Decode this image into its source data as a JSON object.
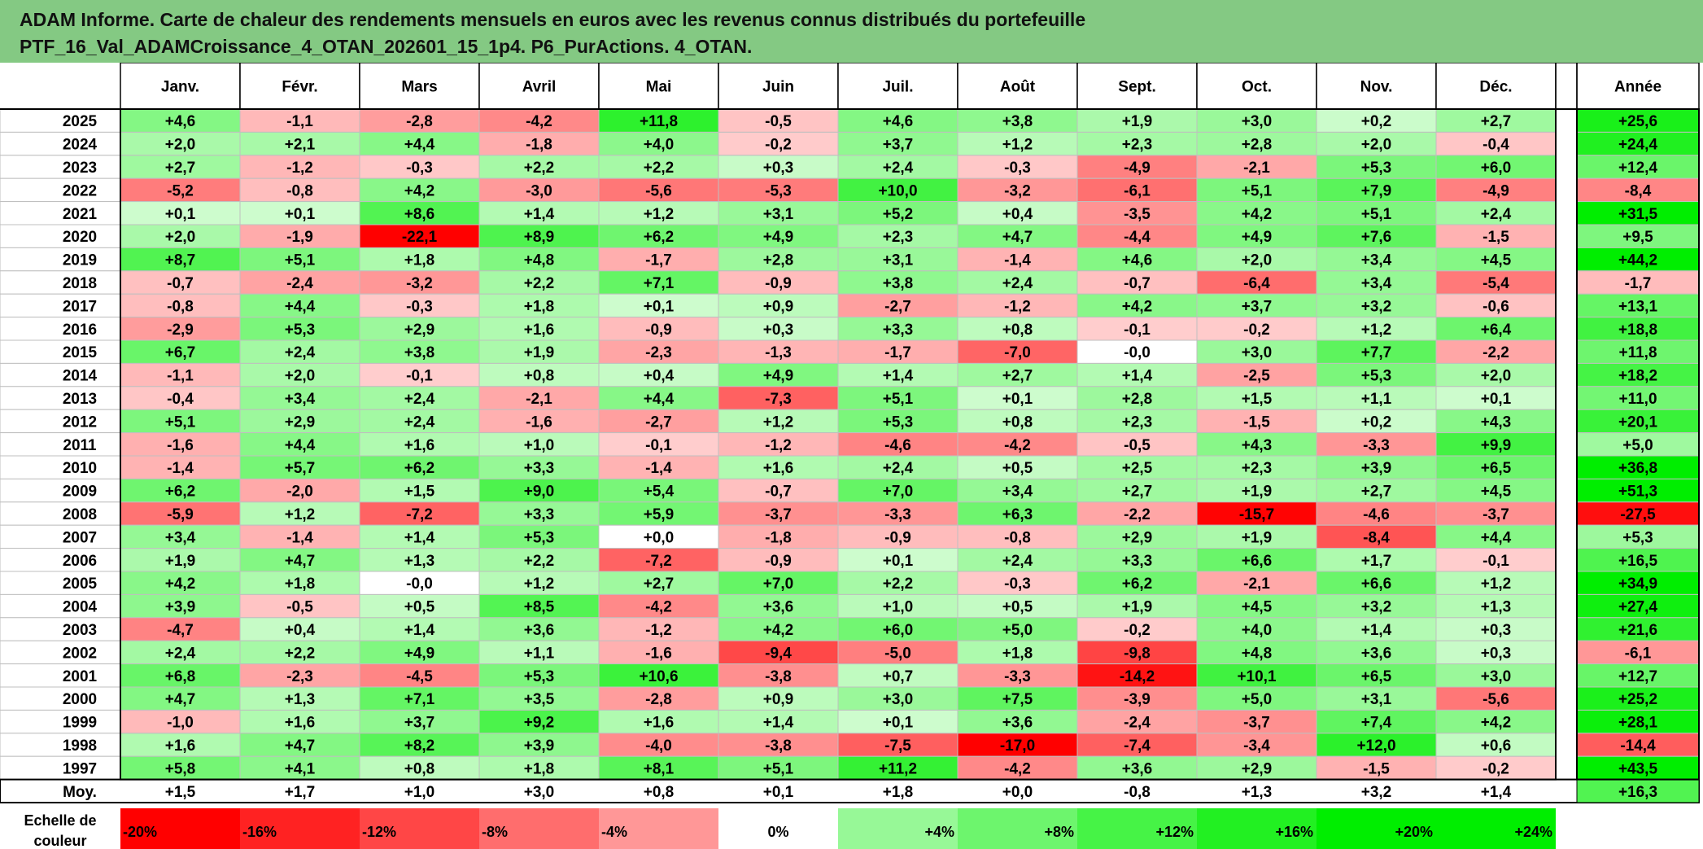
{
  "title_lines": [
    "ADAM Informe. Carte de chaleur des rendements mensuels en euros avec les revenus connus distribués du portefeuille",
    "PTF_16_Val_ADAMCroissance_4_OTAN_202601_15_1p4. P6_PurActions. 4_OTAN."
  ],
  "chart_data": {
    "type": "heatmap",
    "columns": [
      "Janv.",
      "Févr.",
      "Mars",
      "Avril",
      "Mai",
      "Juin",
      "Juil.",
      "Août",
      "Sept.",
      "Oct.",
      "Nov.",
      "Déc."
    ],
    "year_header": "Année",
    "rows": [
      {
        "year": "2025",
        "values": [
          "+4,6",
          "-1,1",
          "-2,8",
          "-4,2",
          "+11,8",
          "-0,5",
          "+4,6",
          "+3,8",
          "+1,9",
          "+3,0",
          "+0,2",
          "+2,7"
        ],
        "annual": "+25,6"
      },
      {
        "year": "2024",
        "values": [
          "+2,0",
          "+2,1",
          "+4,4",
          "-1,8",
          "+4,0",
          "-0,2",
          "+3,7",
          "+1,2",
          "+2,3",
          "+2,8",
          "+2,0",
          "-0,4"
        ],
        "annual": "+24,4"
      },
      {
        "year": "2023",
        "values": [
          "+2,7",
          "-1,2",
          "-0,3",
          "+2,2",
          "+2,2",
          "+0,3",
          "+2,4",
          "-0,3",
          "-4,9",
          "-2,1",
          "+5,3",
          "+6,0"
        ],
        "annual": "+12,4"
      },
      {
        "year": "2022",
        "values": [
          "-5,2",
          "-0,8",
          "+4,2",
          "-3,0",
          "-5,6",
          "-5,3",
          "+10,0",
          "-3,2",
          "-6,1",
          "+5,1",
          "+7,9",
          "-4,9"
        ],
        "annual": "-8,4"
      },
      {
        "year": "2021",
        "values": [
          "+0,1",
          "+0,1",
          "+8,6",
          "+1,4",
          "+1,2",
          "+3,1",
          "+5,2",
          "+0,4",
          "-3,5",
          "+4,2",
          "+5,1",
          "+2,4"
        ],
        "annual": "+31,5"
      },
      {
        "year": "2020",
        "values": [
          "+2,0",
          "-1,9",
          "-22,1",
          "+8,9",
          "+6,2",
          "+4,9",
          "+2,3",
          "+4,7",
          "-4,4",
          "+4,9",
          "+7,6",
          "-1,5"
        ],
        "annual": "+9,5"
      },
      {
        "year": "2019",
        "values": [
          "+8,7",
          "+5,1",
          "+1,8",
          "+4,8",
          "-1,7",
          "+2,8",
          "+3,1",
          "-1,4",
          "+4,6",
          "+2,0",
          "+3,4",
          "+4,5"
        ],
        "annual": "+44,2"
      },
      {
        "year": "2018",
        "values": [
          "-0,7",
          "-2,4",
          "-3,2",
          "+2,2",
          "+7,1",
          "-0,9",
          "+3,8",
          "+2,4",
          "-0,7",
          "-6,4",
          "+3,4",
          "-5,4"
        ],
        "annual": "-1,7"
      },
      {
        "year": "2017",
        "values": [
          "-0,8",
          "+4,4",
          "-0,3",
          "+1,8",
          "+0,1",
          "+0,9",
          "-2,7",
          "-1,2",
          "+4,2",
          "+3,7",
          "+3,2",
          "-0,6"
        ],
        "annual": "+13,1"
      },
      {
        "year": "2016",
        "values": [
          "-2,9",
          "+5,3",
          "+2,9",
          "+1,6",
          "-0,9",
          "+0,3",
          "+3,3",
          "+0,8",
          "-0,1",
          "-0,2",
          "+1,2",
          "+6,4"
        ],
        "annual": "+18,8"
      },
      {
        "year": "2015",
        "values": [
          "+6,7",
          "+2,4",
          "+3,8",
          "+1,9",
          "-2,3",
          "-1,3",
          "-1,7",
          "-7,0",
          "-0,0",
          "+3,0",
          "+7,7",
          "-2,2"
        ],
        "annual": "+11,8"
      },
      {
        "year": "2014",
        "values": [
          "-1,1",
          "+2,0",
          "-0,1",
          "+0,8",
          "+0,4",
          "+4,9",
          "+1,4",
          "+2,7",
          "+1,4",
          "-2,5",
          "+5,3",
          "+2,0"
        ],
        "annual": "+18,2"
      },
      {
        "year": "2013",
        "values": [
          "-0,4",
          "+3,4",
          "+2,4",
          "-2,1",
          "+4,4",
          "-7,3",
          "+5,1",
          "+0,1",
          "+2,8",
          "+1,5",
          "+1,1",
          "+0,1"
        ],
        "annual": "+11,0"
      },
      {
        "year": "2012",
        "values": [
          "+5,1",
          "+2,9",
          "+2,4",
          "-1,6",
          "-2,7",
          "+1,2",
          "+5,3",
          "+0,8",
          "+2,3",
          "-1,5",
          "+0,2",
          "+4,3"
        ],
        "annual": "+20,1"
      },
      {
        "year": "2011",
        "values": [
          "-1,6",
          "+4,4",
          "+1,6",
          "+1,0",
          "-0,1",
          "-1,2",
          "-4,6",
          "-4,2",
          "-0,5",
          "+4,3",
          "-3,3",
          "+9,9"
        ],
        "annual": "+5,0"
      },
      {
        "year": "2010",
        "values": [
          "-1,4",
          "+5,7",
          "+6,2",
          "+3,3",
          "-1,4",
          "+1,6",
          "+2,4",
          "+0,5",
          "+2,5",
          "+2,3",
          "+3,9",
          "+6,5"
        ],
        "annual": "+36,8"
      },
      {
        "year": "2009",
        "values": [
          "+6,2",
          "-2,0",
          "+1,5",
          "+9,0",
          "+5,4",
          "-0,7",
          "+7,0",
          "+3,4",
          "+2,7",
          "+1,9",
          "+2,7",
          "+4,5"
        ],
        "annual": "+51,3"
      },
      {
        "year": "2008",
        "values": [
          "-5,9",
          "+1,2",
          "-7,2",
          "+3,3",
          "+5,9",
          "-3,7",
          "-3,3",
          "+6,3",
          "-2,2",
          "-15,7",
          "-4,6",
          "-3,7"
        ],
        "annual": "-27,5"
      },
      {
        "year": "2007",
        "values": [
          "+3,4",
          "-1,4",
          "+1,4",
          "+5,3",
          "+0,0",
          "-1,8",
          "-0,9",
          "-0,8",
          "+2,9",
          "+1,9",
          "-8,4",
          "+4,4"
        ],
        "annual": "+5,3"
      },
      {
        "year": "2006",
        "values": [
          "+1,9",
          "+4,7",
          "+1,3",
          "+2,2",
          "-7,2",
          "-0,9",
          "+0,1",
          "+2,4",
          "+3,3",
          "+6,6",
          "+1,7",
          "-0,1"
        ],
        "annual": "+16,5"
      },
      {
        "year": "2005",
        "values": [
          "+4,2",
          "+1,8",
          "-0,0",
          "+1,2",
          "+2,7",
          "+7,0",
          "+2,2",
          "-0,3",
          "+6,2",
          "-2,1",
          "+6,6",
          "+1,2"
        ],
        "annual": "+34,9"
      },
      {
        "year": "2004",
        "values": [
          "+3,9",
          "-0,5",
          "+0,5",
          "+8,5",
          "-4,2",
          "+3,6",
          "+1,0",
          "+0,5",
          "+1,9",
          "+4,5",
          "+3,2",
          "+1,3"
        ],
        "annual": "+27,4"
      },
      {
        "year": "2003",
        "values": [
          "-4,7",
          "+0,4",
          "+1,4",
          "+3,6",
          "-1,2",
          "+4,2",
          "+6,0",
          "+5,0",
          "-0,2",
          "+4,0",
          "+1,4",
          "+0,3"
        ],
        "annual": "+21,6"
      },
      {
        "year": "2002",
        "values": [
          "+2,4",
          "+2,2",
          "+4,9",
          "+1,1",
          "-1,6",
          "-9,4",
          "-5,0",
          "+1,8",
          "-9,8",
          "+4,8",
          "+3,6",
          "+0,3"
        ],
        "annual": "-6,1"
      },
      {
        "year": "2001",
        "values": [
          "+6,8",
          "-2,3",
          "-4,5",
          "+5,3",
          "+10,6",
          "-3,8",
          "+0,7",
          "-3,3",
          "-14,2",
          "+10,1",
          "+6,5",
          "+3,0"
        ],
        "annual": "+12,7"
      },
      {
        "year": "2000",
        "values": [
          "+4,7",
          "+1,3",
          "+7,1",
          "+3,5",
          "-2,8",
          "+0,9",
          "+3,0",
          "+7,5",
          "-3,9",
          "+5,0",
          "+3,1",
          "-5,6"
        ],
        "annual": "+25,2"
      },
      {
        "year": "1999",
        "values": [
          "-1,0",
          "+1,6",
          "+3,7",
          "+9,2",
          "+1,6",
          "+1,4",
          "+0,1",
          "+3,6",
          "-2,4",
          "-3,7",
          "+7,4",
          "+4,2"
        ],
        "annual": "+28,1"
      },
      {
        "year": "1998",
        "values": [
          "+1,6",
          "+4,7",
          "+8,2",
          "+3,9",
          "-4,0",
          "-3,8",
          "-7,5",
          "-17,0",
          "-7,4",
          "-3,4",
          "+12,0",
          "+0,6"
        ],
        "annual": "-14,4"
      },
      {
        "year": "1997",
        "values": [
          "+5,8",
          "+4,1",
          "+0,8",
          "+1,8",
          "+8,1",
          "+5,1",
          "+11,2",
          "-4,2",
          "+3,6",
          "+2,9",
          "-1,5",
          "-0,2"
        ],
        "annual": "+43,5"
      }
    ],
    "average_row": {
      "label": "Moy.",
      "values": [
        "+1,5",
        "+1,7",
        "+1,0",
        "+3,0",
        "+0,8",
        "+0,1",
        "+1,8",
        "+0,0",
        "-0,8",
        "+1,3",
        "+3,2",
        "+1,4"
      ],
      "annual": "+16,3"
    },
    "scale": {
      "label_lines": [
        "Echelle de",
        "couleur"
      ],
      "items": [
        "-20%",
        "-16%",
        "-12%",
        "-8%",
        "-4%",
        "0%",
        "+4%",
        "+8%",
        "+12%",
        "+16%",
        "+20%",
        "+24%"
      ]
    }
  },
  "colors": {
    "title_bg": "#84c983",
    "green_max": "#00ee00",
    "red_max": "#ff0000",
    "neutral": "#ffffff",
    "grid": "#bfbfbf",
    "frame": "#000000"
  }
}
